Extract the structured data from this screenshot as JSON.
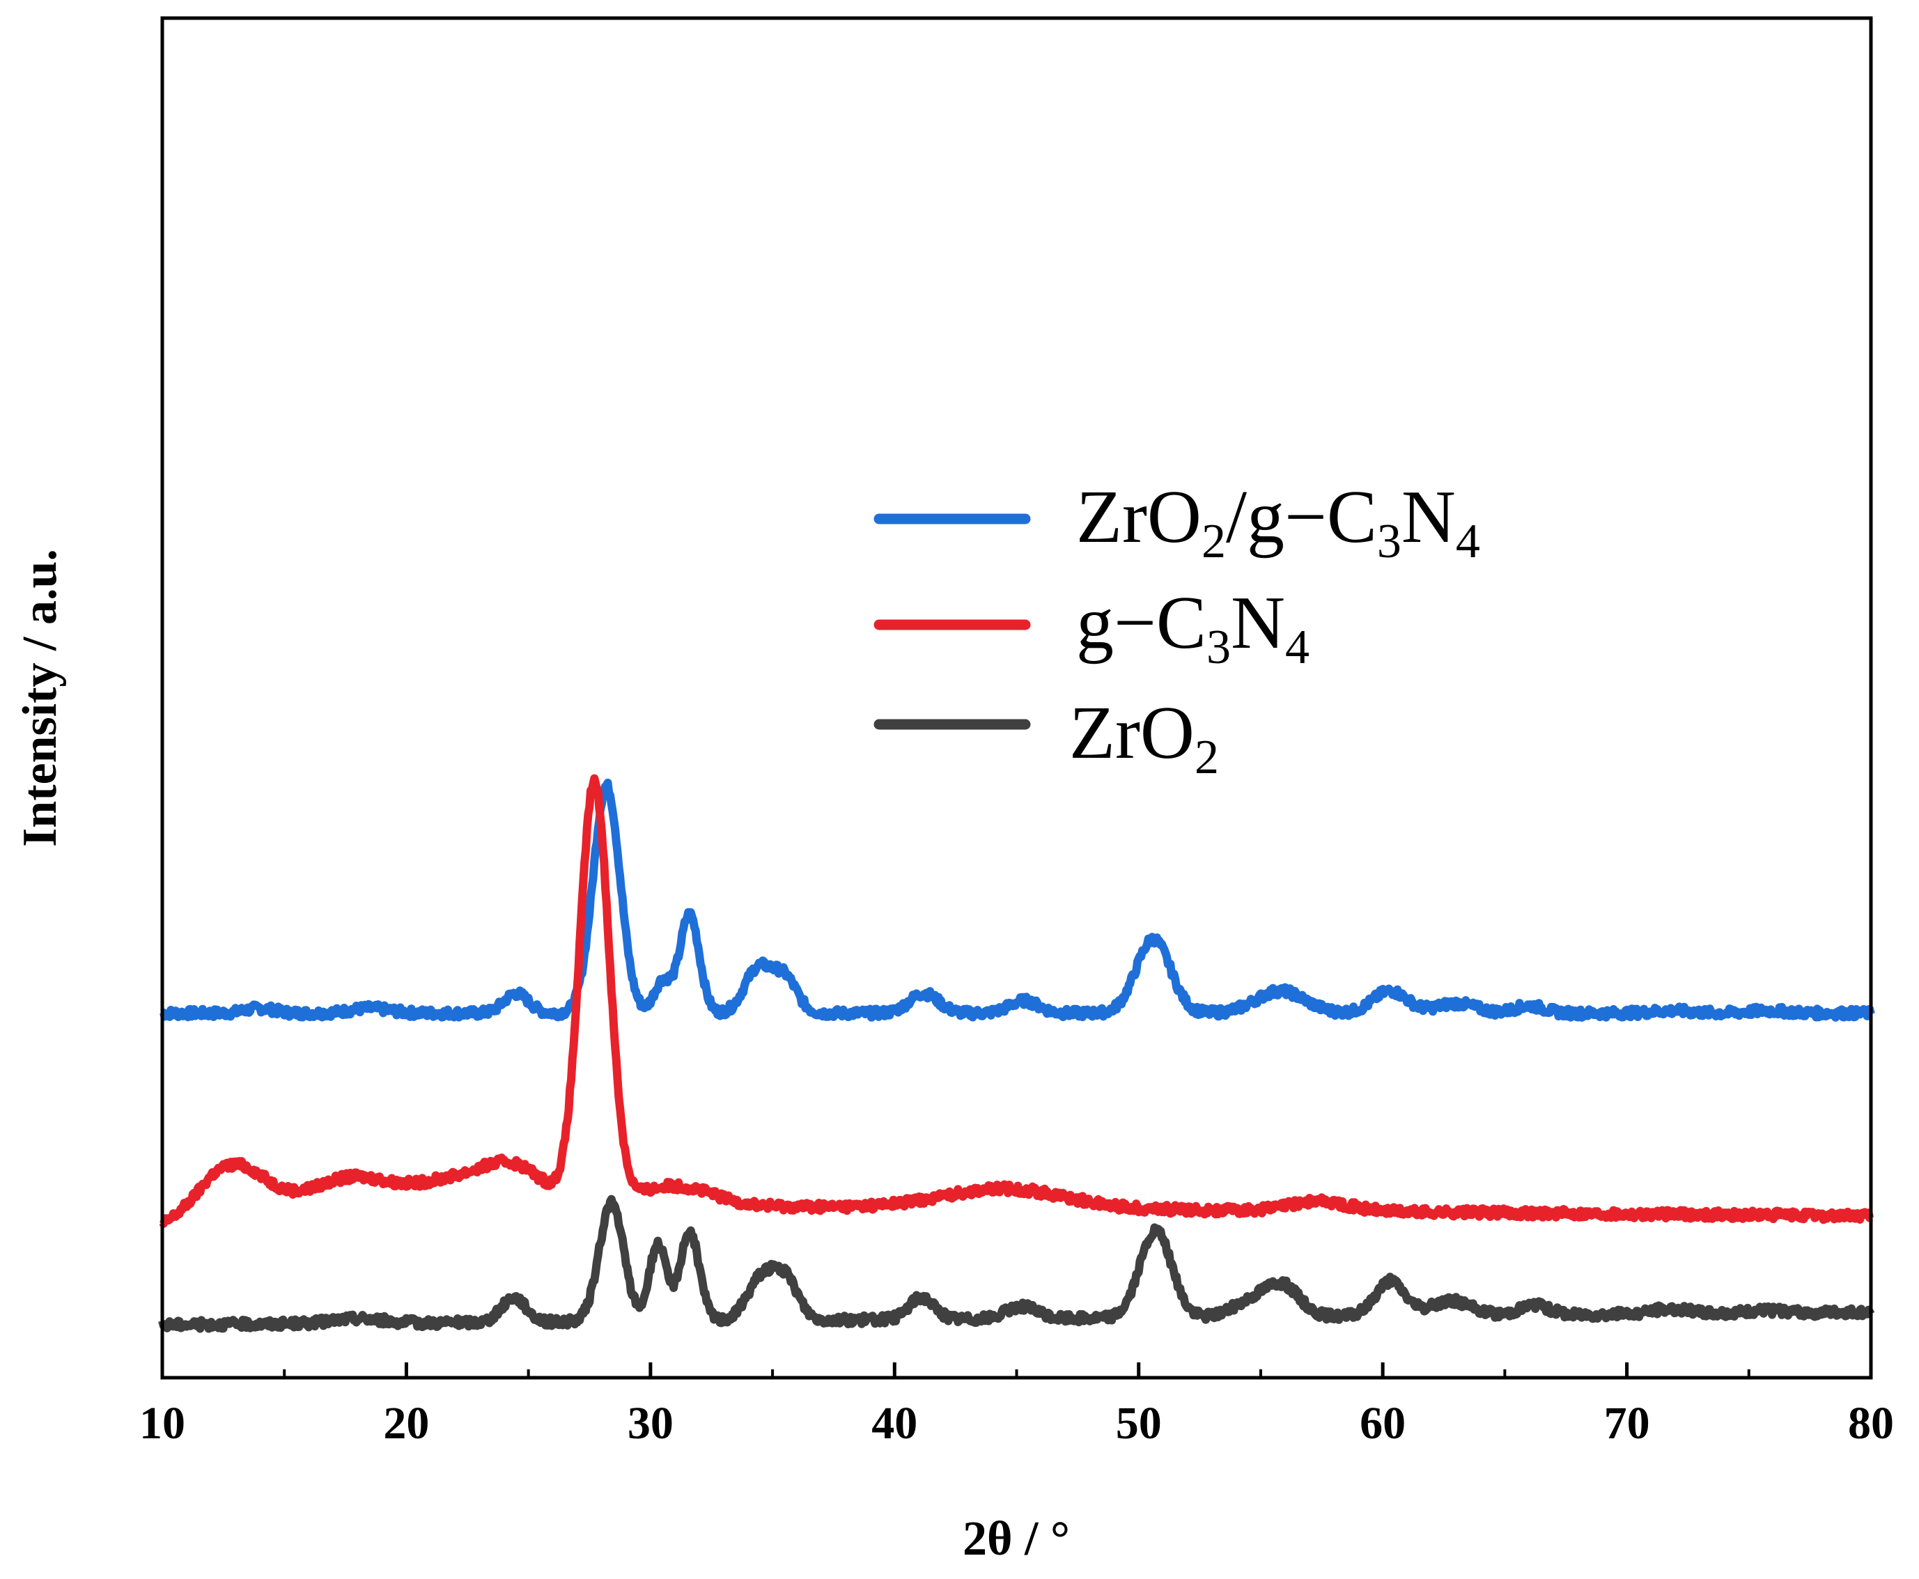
{
  "chart_data": {
    "type": "line",
    "title": "",
    "xlabel": "2θ / °",
    "ylabel": "Intensity / a.u.",
    "xlim": [
      10,
      80
    ],
    "xticks": [
      10,
      20,
      30,
      40,
      50,
      60,
      70,
      80
    ],
    "xtick_labels": [
      "10",
      "20",
      "30",
      "40",
      "50",
      "60",
      "70",
      "80"
    ],
    "y_ticks_shown": false,
    "grid": false,
    "legend_position": "upper-right",
    "series": [
      {
        "name": "ZrO2/g−C3N4",
        "legend": {
          "main": "ZrO",
          "sub1": "2",
          "mid": "/g−C",
          "sub2": "3",
          "tail": "N",
          "sub3": "4"
        },
        "color": "#1f6fd8",
        "baseline": 12.6,
        "peaks": [
          [
            28.2,
            9.2,
            0.55
          ],
          [
            30.5,
            1.3,
            0.35
          ],
          [
            31.6,
            4.0,
            0.4
          ],
          [
            34.4,
            1.8,
            0.55
          ],
          [
            35.5,
            1.4,
            0.5
          ],
          [
            24.5,
            0.8,
            0.5
          ],
          [
            41.2,
            0.8,
            0.6
          ],
          [
            45.3,
            0.5,
            0.6
          ],
          [
            50.6,
            3.0,
            0.7
          ],
          [
            55.8,
            0.9,
            1.0
          ],
          [
            60.3,
            0.9,
            0.7
          ],
          [
            63.0,
            0.4,
            0.8
          ],
          [
            66.0,
            0.3,
            0.6
          ],
          [
            14.0,
            0.2,
            0.6
          ],
          [
            18.5,
            0.2,
            0.8
          ],
          [
            71.8,
            0.1,
            0.8
          ],
          [
            75.8,
            0.1,
            0.8
          ]
        ]
      },
      {
        "name": "g−C3N4",
        "legend": {
          "main": "g−C",
          "sub1": "3",
          "tail": "N",
          "sub2": "4"
        },
        "color": "#e8222a",
        "baseline": 4.4,
        "peaks": [
          [
            27.7,
            17.0,
            0.6
          ],
          [
            13.0,
            1.5,
            1.2
          ],
          [
            17.8,
            1.0,
            1.5
          ],
          [
            22.2,
            1.0,
            1.8
          ],
          [
            24.5,
            1.2,
            1.2
          ],
          [
            31.0,
            0.8,
            1.5
          ],
          [
            44.5,
            0.8,
            2.5
          ],
          [
            57.4,
            0.4,
            1.2
          ]
        ]
      },
      {
        "name": "ZrO2",
        "legend": {
          "main": "ZrO",
          "sub1": "2"
        },
        "color": "#404040",
        "baseline": 0.0,
        "peaks": [
          [
            28.4,
            4.8,
            0.5
          ],
          [
            30.3,
            3.1,
            0.35
          ],
          [
            31.6,
            3.6,
            0.4
          ],
          [
            34.6,
            1.8,
            0.6
          ],
          [
            35.6,
            1.4,
            0.5
          ],
          [
            24.4,
            1.0,
            0.5
          ],
          [
            41.1,
            0.9,
            0.5
          ],
          [
            45.2,
            0.5,
            0.6
          ],
          [
            50.7,
            3.5,
            0.65
          ],
          [
            54.6,
            0.6,
            0.8
          ],
          [
            55.9,
            1.2,
            0.7
          ],
          [
            60.3,
            1.4,
            0.6
          ],
          [
            62.8,
            0.6,
            0.8
          ],
          [
            66.2,
            0.4,
            0.6
          ],
          [
            18.0,
            0.2,
            1.0
          ],
          [
            71.8,
            0.2,
            0.8
          ],
          [
            75.8,
            0.1,
            0.8
          ]
        ]
      }
    ]
  }
}
